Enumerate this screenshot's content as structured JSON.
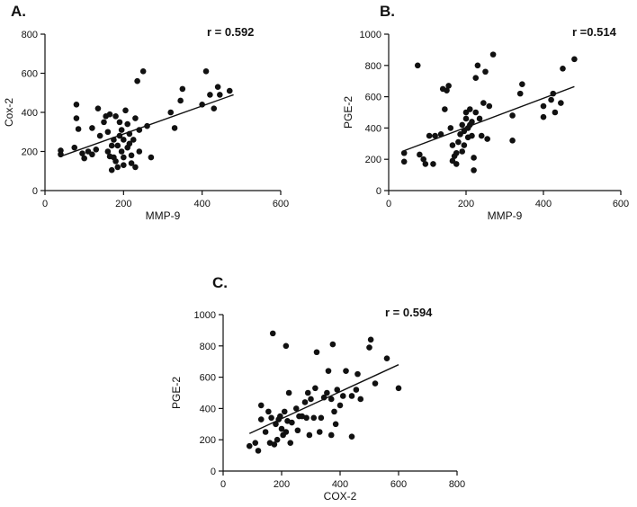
{
  "colors": {
    "ink": "#111111",
    "background": "#ffffff"
  },
  "chart_data": [
    {
      "panel": "A.",
      "type": "scatter",
      "annotation": "r = 0.592",
      "xlabel": "MMP-9",
      "ylabel": "Cox-2",
      "xlim": [
        0,
        600
      ],
      "ylim": [
        0,
        800
      ],
      "xticks": [
        0,
        200,
        400,
        600
      ],
      "yticks": [
        0,
        200,
        400,
        600,
        800
      ],
      "trendline": {
        "x": [
          40,
          480
        ],
        "y": [
          175,
          490
        ]
      },
      "points": [
        [
          40,
          185
        ],
        [
          40,
          205
        ],
        [
          75,
          220
        ],
        [
          80,
          440
        ],
        [
          80,
          370
        ],
        [
          85,
          315
        ],
        [
          95,
          190
        ],
        [
          100,
          165
        ],
        [
          110,
          200
        ],
        [
          120,
          185
        ],
        [
          120,
          320
        ],
        [
          130,
          210
        ],
        [
          135,
          420
        ],
        [
          140,
          280
        ],
        [
          150,
          350
        ],
        [
          155,
          380
        ],
        [
          160,
          200
        ],
        [
          160,
          300
        ],
        [
          165,
          390
        ],
        [
          165,
          175
        ],
        [
          170,
          105
        ],
        [
          170,
          230
        ],
        [
          175,
          170
        ],
        [
          175,
          260
        ],
        [
          180,
          380
        ],
        [
          180,
          150
        ],
        [
          185,
          120
        ],
        [
          185,
          230
        ],
        [
          190,
          280
        ],
        [
          190,
          350
        ],
        [
          195,
          200
        ],
        [
          195,
          310
        ],
        [
          200,
          260
        ],
        [
          200,
          170
        ],
        [
          200,
          130
        ],
        [
          205,
          410
        ],
        [
          210,
          220
        ],
        [
          210,
          340
        ],
        [
          215,
          290
        ],
        [
          215,
          240
        ],
        [
          220,
          140
        ],
        [
          220,
          180
        ],
        [
          225,
          260
        ],
        [
          230,
          120
        ],
        [
          230,
          370
        ],
        [
          235,
          560
        ],
        [
          240,
          200
        ],
        [
          240,
          310
        ],
        [
          250,
          610
        ],
        [
          260,
          330
        ],
        [
          270,
          170
        ],
        [
          320,
          400
        ],
        [
          330,
          320
        ],
        [
          345,
          460
        ],
        [
          350,
          520
        ],
        [
          400,
          440
        ],
        [
          410,
          610
        ],
        [
          420,
          490
        ],
        [
          430,
          420
        ],
        [
          440,
          530
        ],
        [
          445,
          490
        ],
        [
          470,
          510
        ]
      ]
    },
    {
      "panel": "B.",
      "type": "scatter",
      "annotation": "r =0.514",
      "xlabel": "MMP-9",
      "ylabel": "PGE-2",
      "xlim": [
        0,
        600
      ],
      "ylim": [
        0,
        1000
      ],
      "xticks": [
        0,
        200,
        400,
        600
      ],
      "yticks": [
        0,
        200,
        400,
        600,
        800,
        1000
      ],
      "trendline": {
        "x": [
          40,
          480
        ],
        "y": [
          255,
          665
        ]
      },
      "points": [
        [
          40,
          185
        ],
        [
          40,
          240
        ],
        [
          75,
          800
        ],
        [
          80,
          230
        ],
        [
          90,
          200
        ],
        [
          95,
          170
        ],
        [
          105,
          350
        ],
        [
          115,
          170
        ],
        [
          120,
          350
        ],
        [
          135,
          360
        ],
        [
          140,
          650
        ],
        [
          145,
          520
        ],
        [
          150,
          640
        ],
        [
          155,
          670
        ],
        [
          160,
          400
        ],
        [
          165,
          290
        ],
        [
          165,
          190
        ],
        [
          170,
          220
        ],
        [
          175,
          240
        ],
        [
          175,
          170
        ],
        [
          180,
          310
        ],
        [
          185,
          360
        ],
        [
          190,
          420
        ],
        [
          190,
          250
        ],
        [
          195,
          380
        ],
        [
          195,
          290
        ],
        [
          200,
          460
        ],
        [
          200,
          500
        ],
        [
          205,
          340
        ],
        [
          205,
          400
        ],
        [
          210,
          420
        ],
        [
          210,
          520
        ],
        [
          215,
          350
        ],
        [
          215,
          440
        ],
        [
          220,
          210
        ],
        [
          220,
          130
        ],
        [
          225,
          720
        ],
        [
          225,
          500
        ],
        [
          230,
          800
        ],
        [
          235,
          460
        ],
        [
          240,
          350
        ],
        [
          245,
          560
        ],
        [
          250,
          760
        ],
        [
          255,
          330
        ],
        [
          260,
          540
        ],
        [
          270,
          870
        ],
        [
          320,
          320
        ],
        [
          320,
          480
        ],
        [
          340,
          620
        ],
        [
          345,
          680
        ],
        [
          400,
          540
        ],
        [
          400,
          470
        ],
        [
          420,
          580
        ],
        [
          425,
          620
        ],
        [
          430,
          500
        ],
        [
          445,
          560
        ],
        [
          450,
          780
        ],
        [
          480,
          840
        ]
      ]
    },
    {
      "panel": "C.",
      "type": "scatter",
      "annotation": "r = 0.594",
      "xlabel": "COX-2",
      "ylabel": "PGE-2",
      "xlim": [
        0,
        800
      ],
      "ylim": [
        0,
        1000
      ],
      "xticks": [
        0,
        200,
        400,
        600,
        800
      ],
      "yticks": [
        0,
        200,
        400,
        600,
        800,
        1000
      ],
      "trendline": {
        "x": [
          90,
          600
        ],
        "y": [
          240,
          680
        ]
      },
      "points": [
        [
          90,
          160
        ],
        [
          110,
          180
        ],
        [
          120,
          130
        ],
        [
          130,
          330
        ],
        [
          130,
          420
        ],
        [
          145,
          250
        ],
        [
          155,
          380
        ],
        [
          160,
          180
        ],
        [
          165,
          340
        ],
        [
          170,
          880
        ],
        [
          175,
          170
        ],
        [
          180,
          300
        ],
        [
          185,
          200
        ],
        [
          190,
          330
        ],
        [
          195,
          350
        ],
        [
          200,
          270
        ],
        [
          205,
          230
        ],
        [
          210,
          380
        ],
        [
          215,
          800
        ],
        [
          215,
          250
        ],
        [
          220,
          320
        ],
        [
          225,
          500
        ],
        [
          230,
          180
        ],
        [
          235,
          310
        ],
        [
          250,
          400
        ],
        [
          255,
          260
        ],
        [
          260,
          350
        ],
        [
          270,
          350
        ],
        [
          280,
          440
        ],
        [
          285,
          340
        ],
        [
          290,
          500
        ],
        [
          295,
          230
        ],
        [
          300,
          460
        ],
        [
          310,
          340
        ],
        [
          315,
          530
        ],
        [
          320,
          760
        ],
        [
          330,
          250
        ],
        [
          335,
          340
        ],
        [
          345,
          470
        ],
        [
          355,
          500
        ],
        [
          360,
          640
        ],
        [
          370,
          230
        ],
        [
          370,
          460
        ],
        [
          375,
          810
        ],
        [
          380,
          380
        ],
        [
          385,
          300
        ],
        [
          390,
          520
        ],
        [
          400,
          420
        ],
        [
          410,
          480
        ],
        [
          420,
          640
        ],
        [
          440,
          220
        ],
        [
          440,
          480
        ],
        [
          455,
          520
        ],
        [
          460,
          620
        ],
        [
          470,
          460
        ],
        [
          500,
          790
        ],
        [
          505,
          840
        ],
        [
          520,
          560
        ],
        [
          560,
          720
        ],
        [
          600,
          530
        ]
      ]
    }
  ]
}
